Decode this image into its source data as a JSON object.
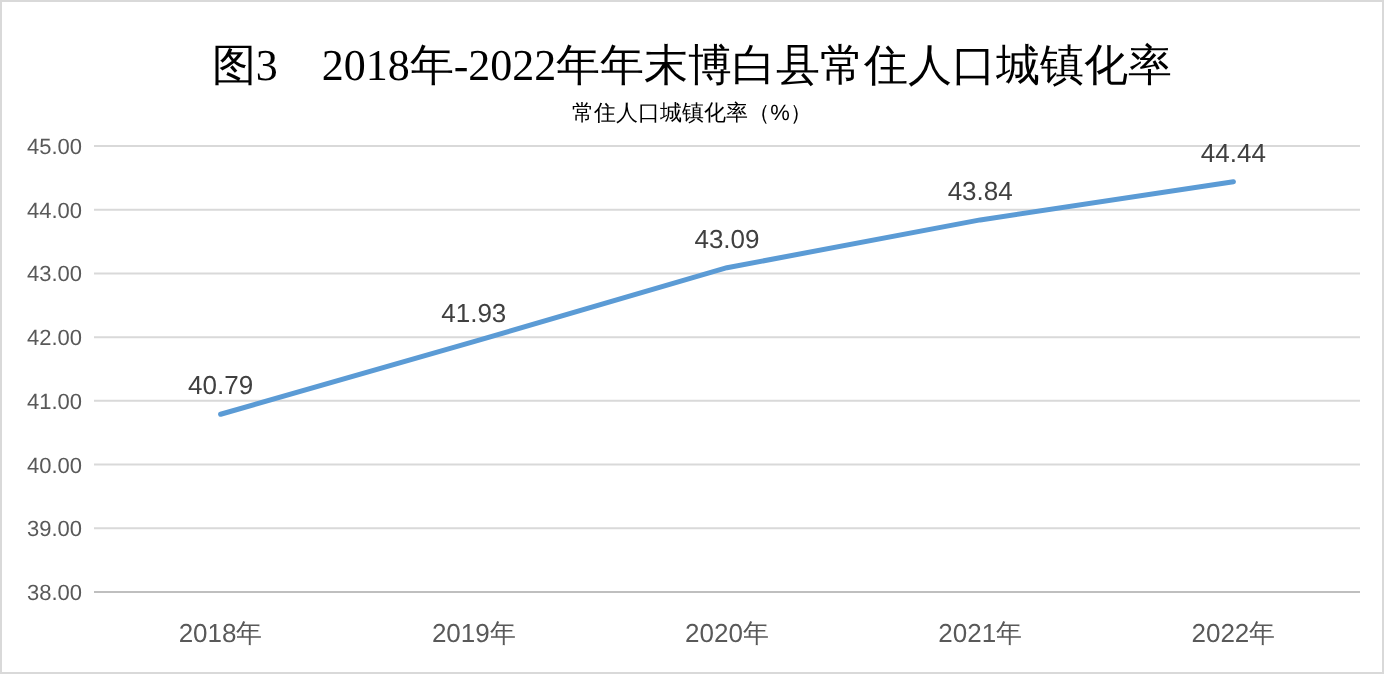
{
  "chart_data": {
    "type": "line",
    "title": "图3　2018年-2022年年末博白县常住人口城镇化率",
    "subtitle": "常住人口城镇化率（%）",
    "categories": [
      "2018年",
      "2019年",
      "2020年",
      "2021年",
      "2022年"
    ],
    "series": [
      {
        "color": "#5b9bd5",
        "values": [
          40.79,
          41.93,
          43.09,
          43.84,
          44.44
        ]
      }
    ],
    "ylim": [
      38,
      45
    ],
    "yticks": [
      {
        "value": 38,
        "label": "38.00"
      },
      {
        "value": 39,
        "label": "39.00"
      },
      {
        "value": 40,
        "label": "40.00"
      },
      {
        "value": 41,
        "label": "41.00"
      },
      {
        "value": 42,
        "label": "42.00"
      },
      {
        "value": 43,
        "label": "43.00"
      },
      {
        "value": 44,
        "label": "44.00"
      },
      {
        "value": 45,
        "label": "45.00"
      }
    ],
    "grid": "y",
    "data_labels": true,
    "marker": "none",
    "line_style": "solid"
  }
}
